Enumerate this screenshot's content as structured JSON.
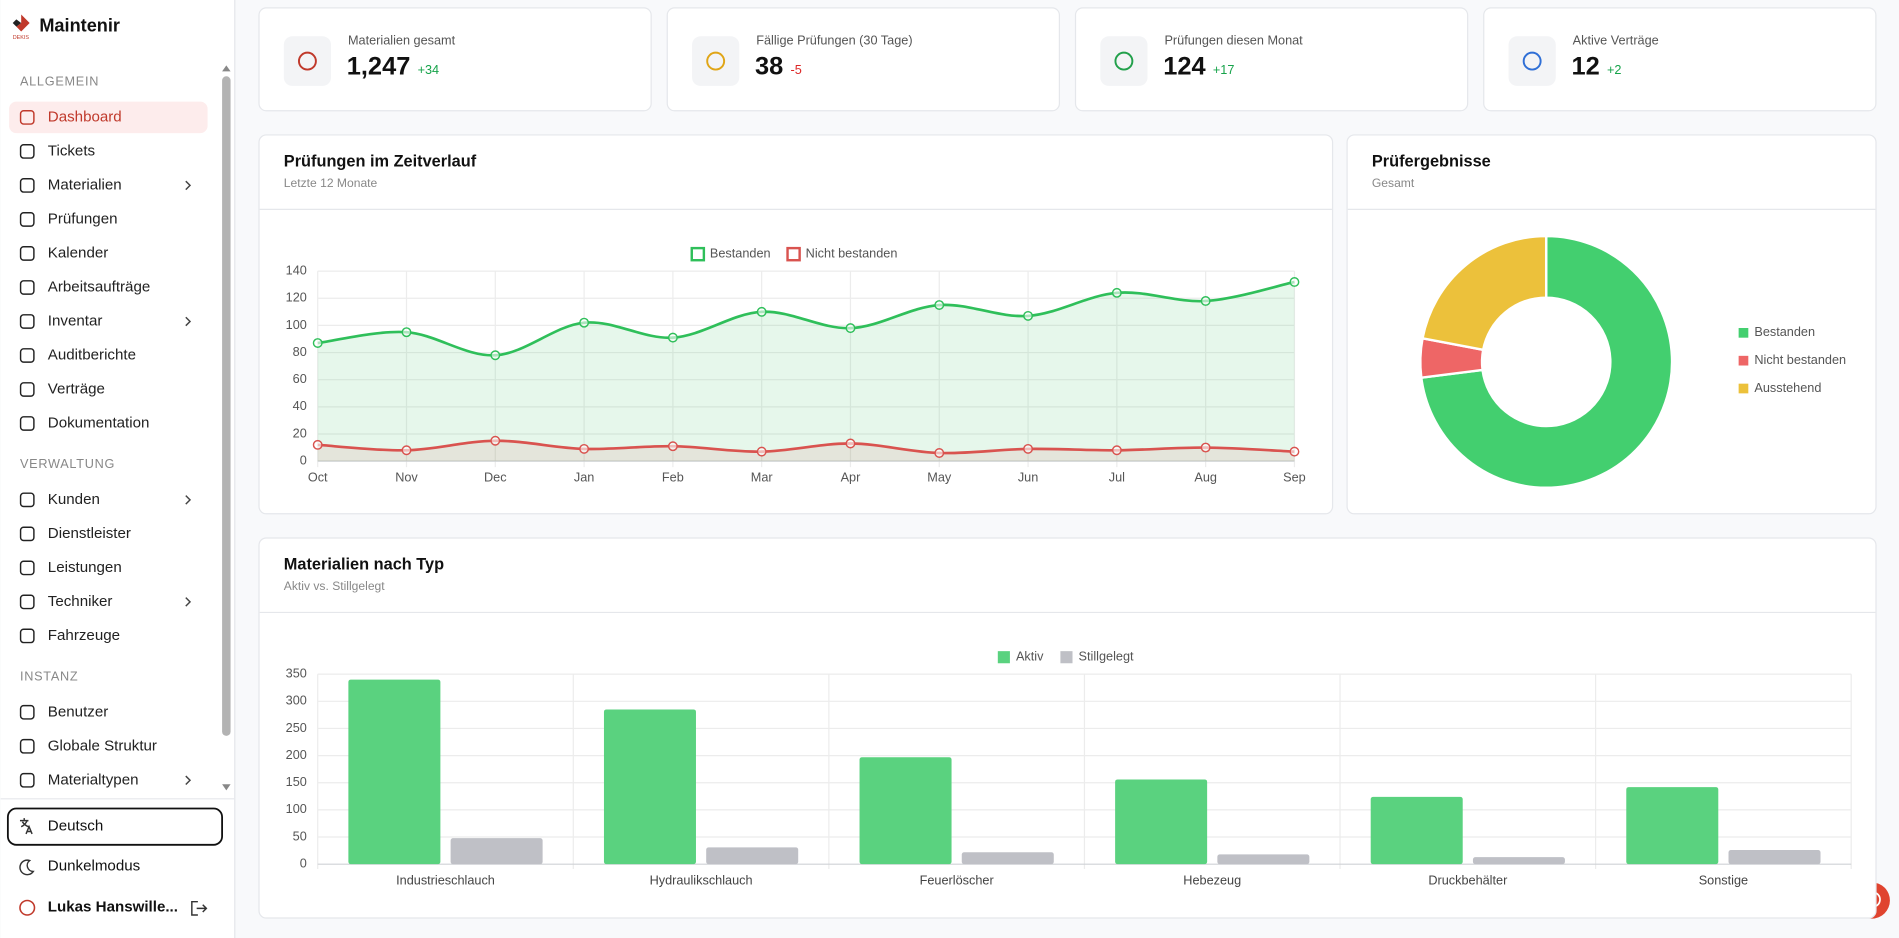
{
  "sidebar": {
    "brand": "Maintenir",
    "brand_sub": "DEKIS",
    "sections": [
      {
        "title": "ALLGEMEIN",
        "items": [
          {
            "label": "Dashboard",
            "active": true
          },
          {
            "label": "Tickets"
          },
          {
            "label": "Materialien",
            "expandable": true
          },
          {
            "label": "Prüfungen"
          },
          {
            "label": "Kalender"
          },
          {
            "label": "Arbeitsaufträge"
          },
          {
            "label": "Inventar",
            "expandable": true
          },
          {
            "label": "Auditberichte"
          },
          {
            "label": "Verträge"
          },
          {
            "label": "Dokumentation"
          }
        ]
      },
      {
        "title": "VERWALTUNG",
        "items": [
          {
            "label": "Kunden",
            "expandable": true
          },
          {
            "label": "Dienstleister"
          },
          {
            "label": "Leistungen"
          },
          {
            "label": "Techniker",
            "expandable": true
          },
          {
            "label": "Fahrzeuge"
          }
        ]
      },
      {
        "title": "INSTANZ",
        "items": [
          {
            "label": "Benutzer"
          },
          {
            "label": "Globale Struktur"
          },
          {
            "label": "Materialtypen",
            "expandable": true
          }
        ]
      }
    ],
    "language": "Deutsch",
    "dark_mode": "Dunkelmodus",
    "user": "Lukas Hanswille..."
  },
  "stats": [
    {
      "label": "Materialien gesamt",
      "value": "1,247",
      "delta": "+34",
      "color": "#16a34a",
      "icon_color": "#c0392b"
    },
    {
      "label": "Fällige Prüfungen (30 Tage)",
      "value": "38",
      "delta": "-5",
      "color": "#dc2626",
      "icon_color": "#e0a516"
    },
    {
      "label": "Prüfungen diesen Monat",
      "value": "124",
      "delta": "+17",
      "color": "#16a34a",
      "icon_color": "#22a04b"
    },
    {
      "label": "Aktive Verträge",
      "value": "12",
      "delta": "+2",
      "color": "#16a34a",
      "icon_color": "#2f6fd6"
    }
  ],
  "line_chart": {
    "type": "line",
    "title": "Prüfungen im Zeitverlauf",
    "subtitle": "Letzte 12 Monate",
    "categories": [
      "Oct",
      "Nov",
      "Dec",
      "Jan",
      "Feb",
      "Mar",
      "Apr",
      "May",
      "Jun",
      "Jul",
      "Aug",
      "Sep"
    ],
    "series": [
      {
        "name": "Bestanden",
        "color": "#2fbf5a",
        "values": [
          87,
          95,
          78,
          102,
          91,
          110,
          98,
          115,
          107,
          124,
          118,
          132
        ]
      },
      {
        "name": "Nicht bestanden",
        "color": "#d9534f",
        "values": [
          12,
          8,
          15,
          9,
          11,
          7,
          13,
          6,
          9,
          8,
          10,
          7
        ]
      }
    ],
    "ylim": [
      0,
      140
    ],
    "yticks": [
      0,
      20,
      40,
      60,
      80,
      100,
      120,
      140
    ],
    "grid": true
  },
  "donut_chart": {
    "type": "donut",
    "title": "Prüfergebnisse",
    "subtitle": "Gesamt",
    "categories": [
      "Bestanden",
      "Nicht bestanden",
      "Ausstehend"
    ],
    "values": [
      73,
      5,
      22
    ],
    "colors": [
      "#43cf6f",
      "#ee6666",
      "#ecc13b"
    ]
  },
  "bar_chart": {
    "type": "bar",
    "title": "Materialien nach Typ",
    "subtitle": "Aktiv vs. Stillgelegt",
    "categories": [
      "Industrieschlauch",
      "Hydraulikschlauch",
      "Feuerlöscher",
      "Hebezeug",
      "Druckbehälter",
      "Sonstige"
    ],
    "series": [
      {
        "name": "Aktiv",
        "color": "#5ad27f",
        "values": [
          340,
          285,
          197,
          156,
          124,
          142
        ]
      },
      {
        "name": "Stillgelegt",
        "color": "#bfc0c6",
        "values": [
          48,
          31,
          22,
          18,
          13,
          26
        ]
      }
    ],
    "ylim": [
      0,
      350
    ],
    "yticks": [
      0,
      50,
      100,
      150,
      200,
      250,
      300,
      350
    ],
    "grid": true
  }
}
